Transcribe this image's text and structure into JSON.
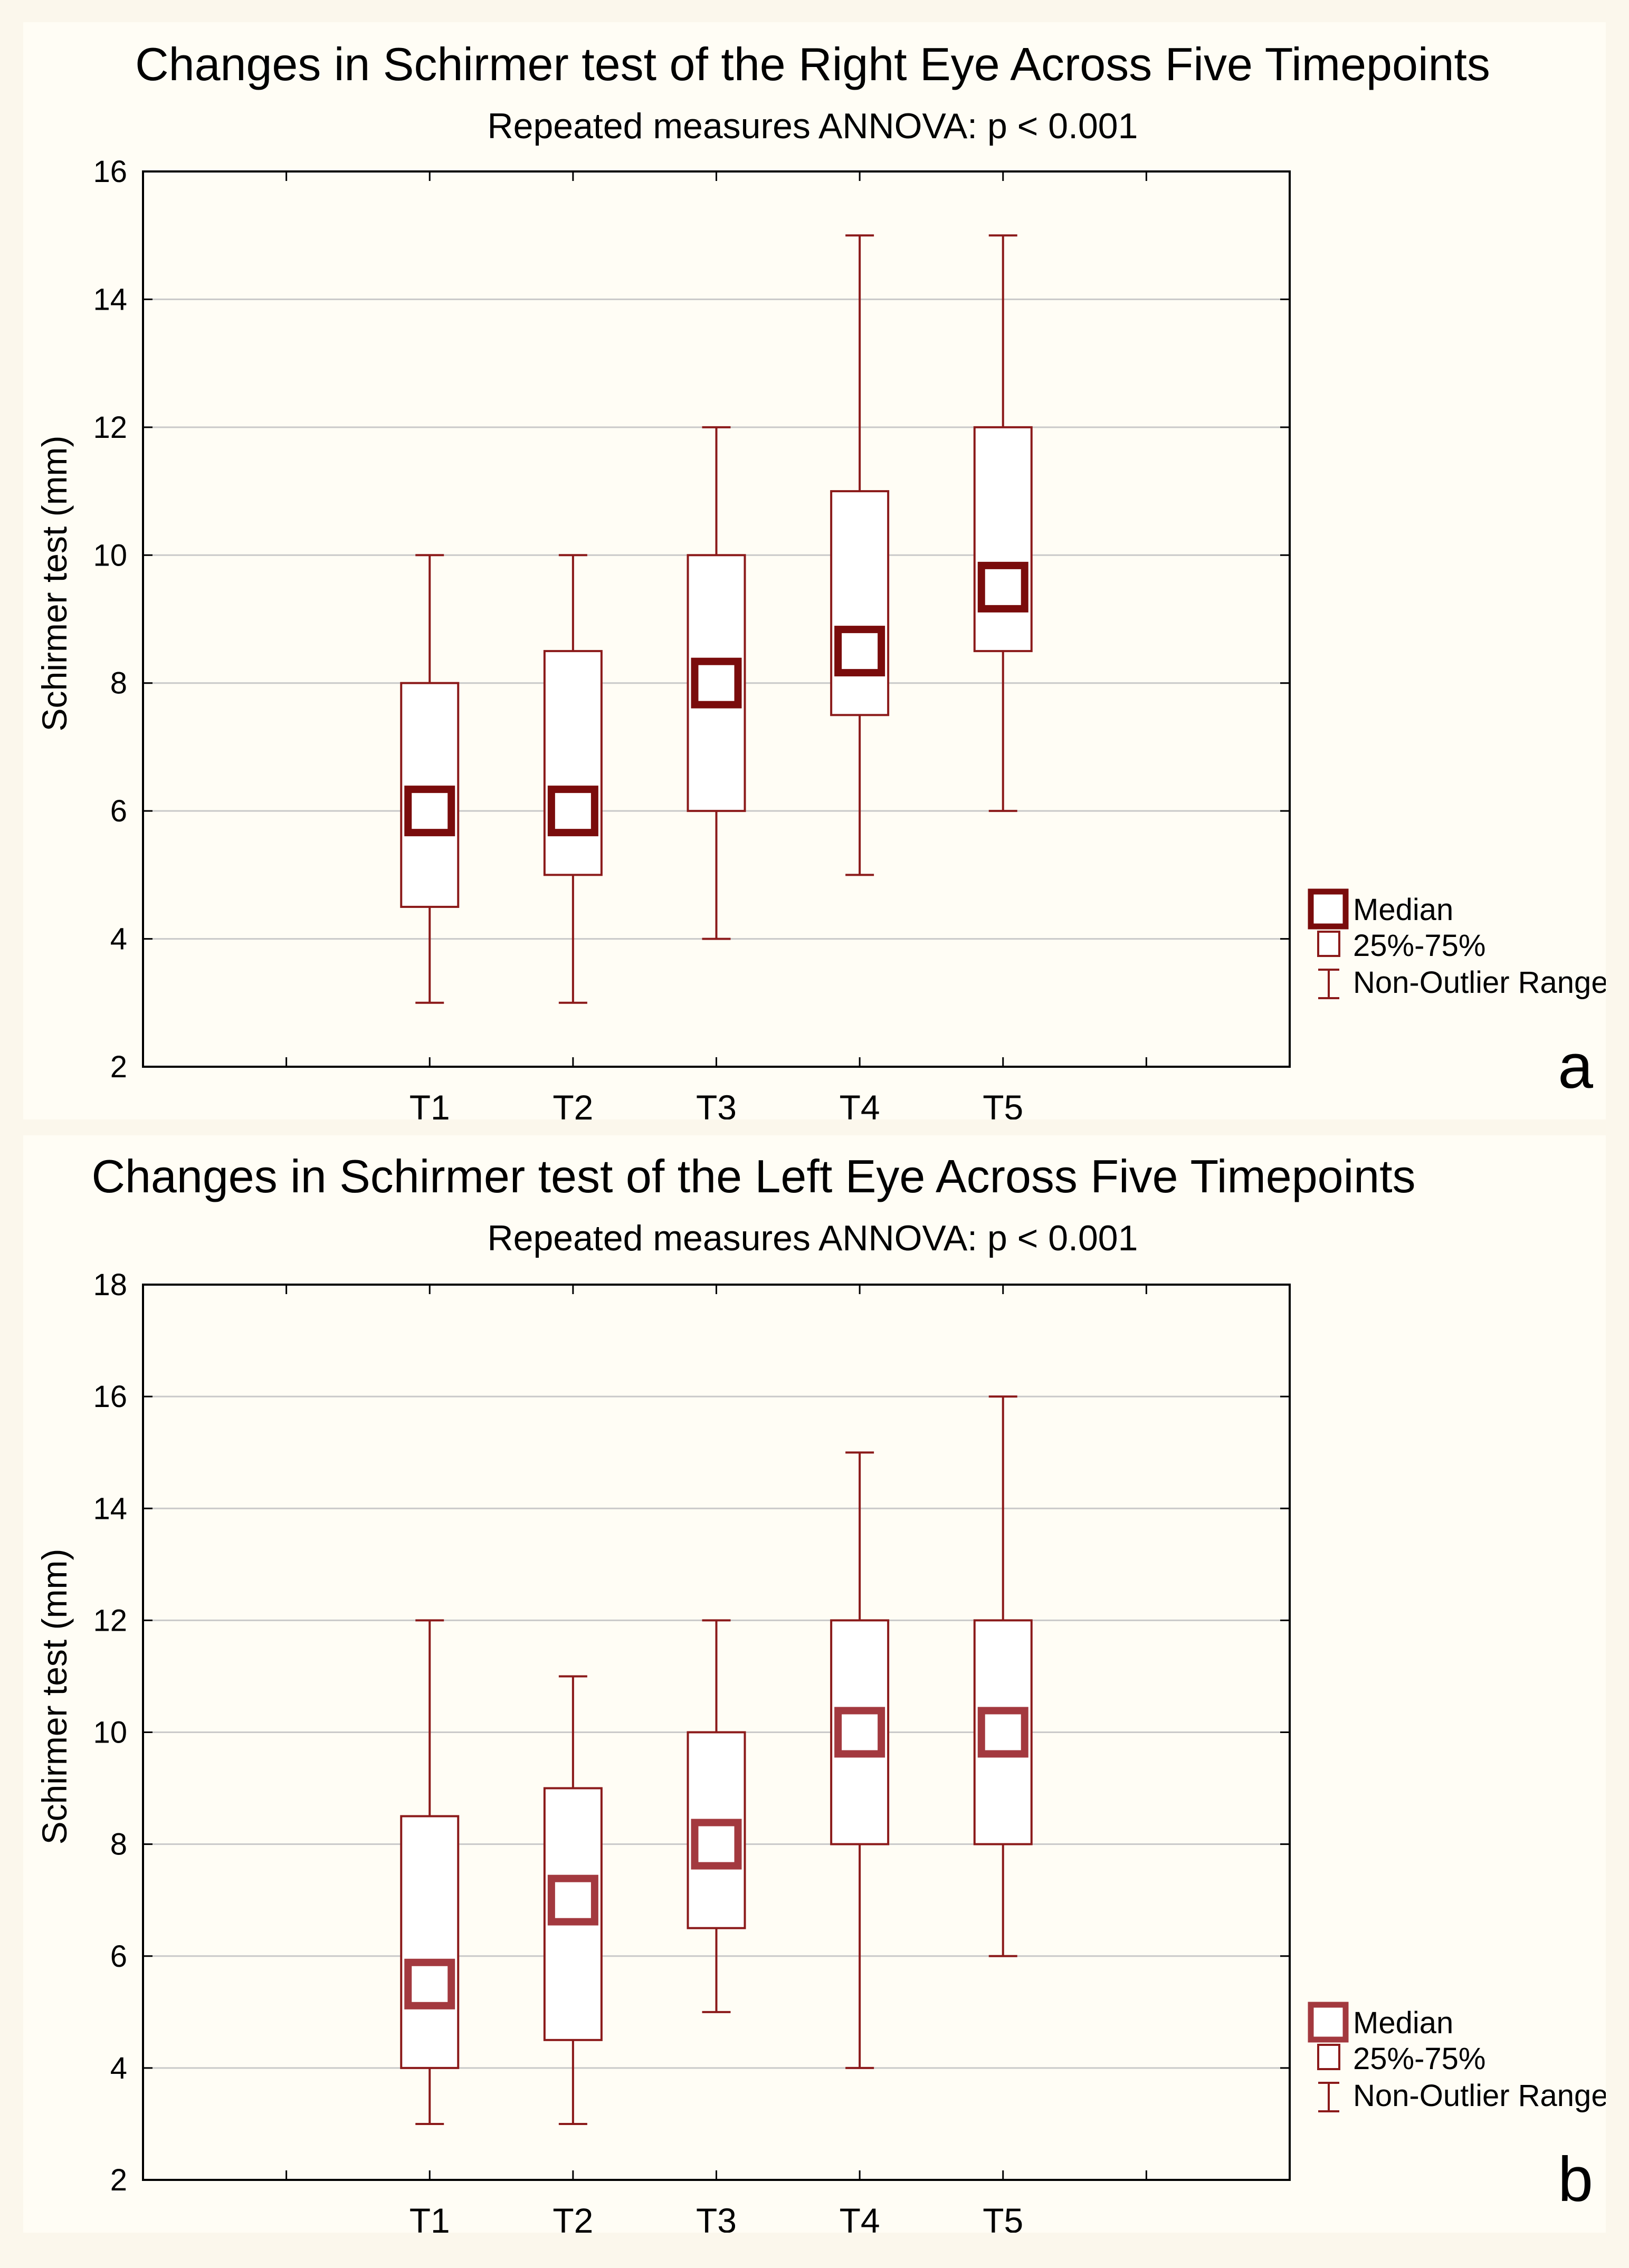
{
  "chart_data": [
    {
      "type": "box",
      "panel_label": "a",
      "title": "Changes in Schirmer test of the Right Eye Across Five Timepoints",
      "subtitle": "Repeated measures ANNOVA: p < 0.001",
      "ylabel": "Schirmer test (mm)",
      "xlabel": "",
      "ylim": [
        2,
        16
      ],
      "yticks": [
        2,
        4,
        6,
        8,
        10,
        12,
        14,
        16
      ],
      "grid": true,
      "color": "#8b1a1a",
      "median_color": "#7a0c0c",
      "categories": [
        "T1",
        "T2",
        "T3",
        "T4",
        "T5"
      ],
      "boxes": [
        {
          "min": 3,
          "q1": 4.5,
          "median": 6,
          "q3": 8,
          "max": 10
        },
        {
          "min": 3,
          "q1": 5,
          "median": 6,
          "q3": 8.5,
          "max": 10
        },
        {
          "min": 4,
          "q1": 6,
          "median": 8,
          "q3": 10,
          "max": 12
        },
        {
          "min": 5,
          "q1": 7.5,
          "median": 8.5,
          "q3": 11,
          "max": 15
        },
        {
          "min": 6,
          "q1": 8.5,
          "median": 9.5,
          "q3": 12,
          "max": 15
        }
      ],
      "legend": {
        "placement": "right-bottom",
        "items": [
          "Median",
          "25%-75%",
          "Non-Outlier Range"
        ]
      }
    },
    {
      "type": "box",
      "panel_label": "b",
      "title": "Changes in Schirmer test of the Left Eye Across Five Timepoints",
      "subtitle": "Repeated measures ANNOVA: p < 0.001",
      "ylabel": "Schirmer test (mm)",
      "xlabel": "",
      "ylim": [
        2,
        18
      ],
      "yticks": [
        2,
        4,
        6,
        8,
        10,
        12,
        14,
        16,
        18
      ],
      "grid": true,
      "color": "#8b1a1a",
      "median_color": "#a3393f",
      "categories": [
        "T1",
        "T2",
        "T3",
        "T4",
        "T5"
      ],
      "boxes": [
        {
          "min": 3,
          "q1": 4,
          "median": 5.5,
          "q3": 8.5,
          "max": 12
        },
        {
          "min": 3,
          "q1": 4.5,
          "median": 7,
          "q3": 9,
          "max": 11
        },
        {
          "min": 5,
          "q1": 6.5,
          "median": 8,
          "q3": 10,
          "max": 12
        },
        {
          "min": 4,
          "q1": 8,
          "median": 10,
          "q3": 12,
          "max": 15
        },
        {
          "min": 6,
          "q1": 8,
          "median": 10,
          "q3": 12,
          "max": 16
        }
      ],
      "legend": {
        "placement": "right-bottom",
        "items": [
          "Median",
          "25%-75%",
          "Non-Outlier Range"
        ]
      }
    }
  ]
}
